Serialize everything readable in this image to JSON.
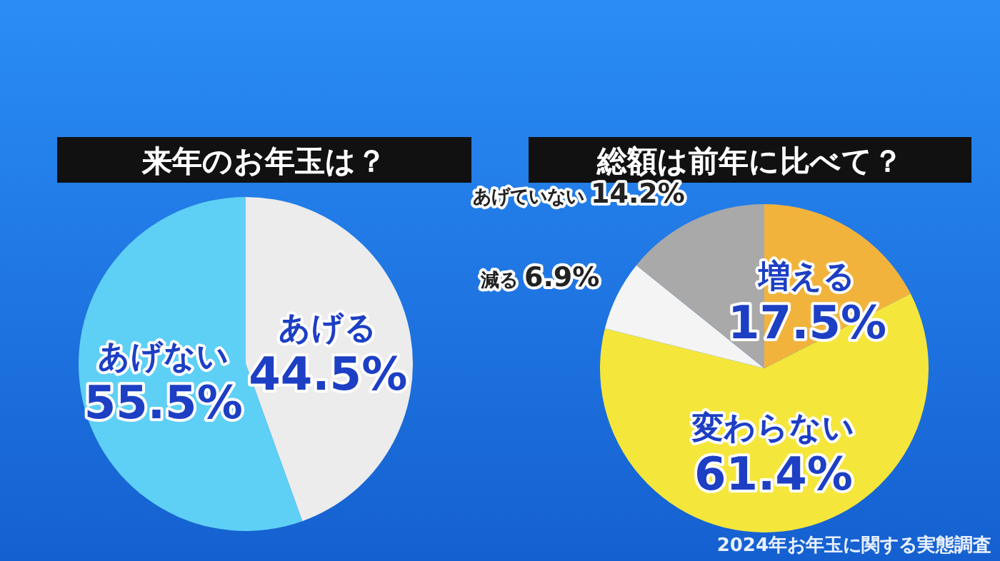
{
  "chart_data": [
    {
      "type": "pie",
      "title": "来年のお年玉は？",
      "categories": [
        "あげる",
        "あげない"
      ],
      "values": [
        44.5,
        55.5
      ],
      "colors": [
        "#ececec",
        "#5fd0f5"
      ],
      "value_labels": [
        "44.5%",
        "55.5%"
      ]
    },
    {
      "type": "pie",
      "title": "総額は前年に比べて？",
      "categories": [
        "増える",
        "変わらない",
        "減る",
        "あげていない"
      ],
      "values": [
        17.5,
        61.4,
        6.9,
        14.2
      ],
      "colors": [
        "#f2b33d",
        "#f5e63c",
        "#f4f4f4",
        "#a9a9a9"
      ],
      "value_labels": [
        "17.5%",
        "61.4%",
        "6.9%",
        "14.2%"
      ],
      "annotations": [
        "2024年お年玉に関する実態調査"
      ]
    }
  ]
}
